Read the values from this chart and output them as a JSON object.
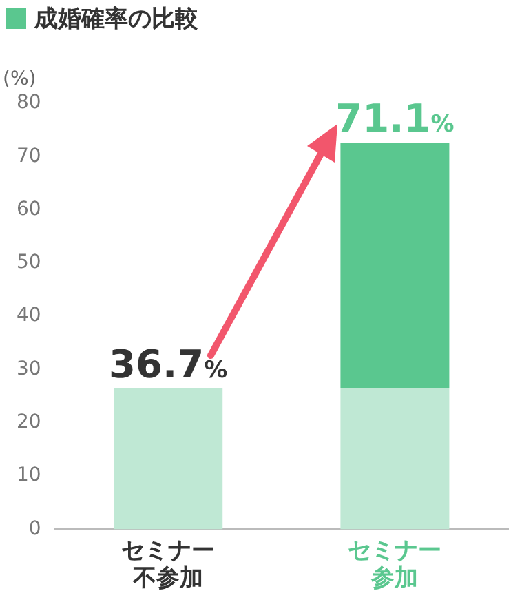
{
  "chart_data": {
    "type": "bar",
    "title": "成婚確率の比較",
    "ylabel": "(%)",
    "categories": [
      "セミナー不参加",
      "セミナー参加"
    ],
    "series": [
      {
        "color": "#bfe8d4",
        "values": [
          26.5,
          26.5
        ]
      },
      {
        "color": "#5ac78f",
        "values": [
          null,
          46.1
        ]
      }
    ],
    "stacked": true,
    "annotations": [
      "36.7%",
      "71.1%"
    ],
    "ylim": [
      0,
      80
    ],
    "yticks": [
      0,
      10,
      20,
      30,
      40,
      50,
      60,
      70,
      80
    ],
    "grid": false,
    "legend": false
  }
}
